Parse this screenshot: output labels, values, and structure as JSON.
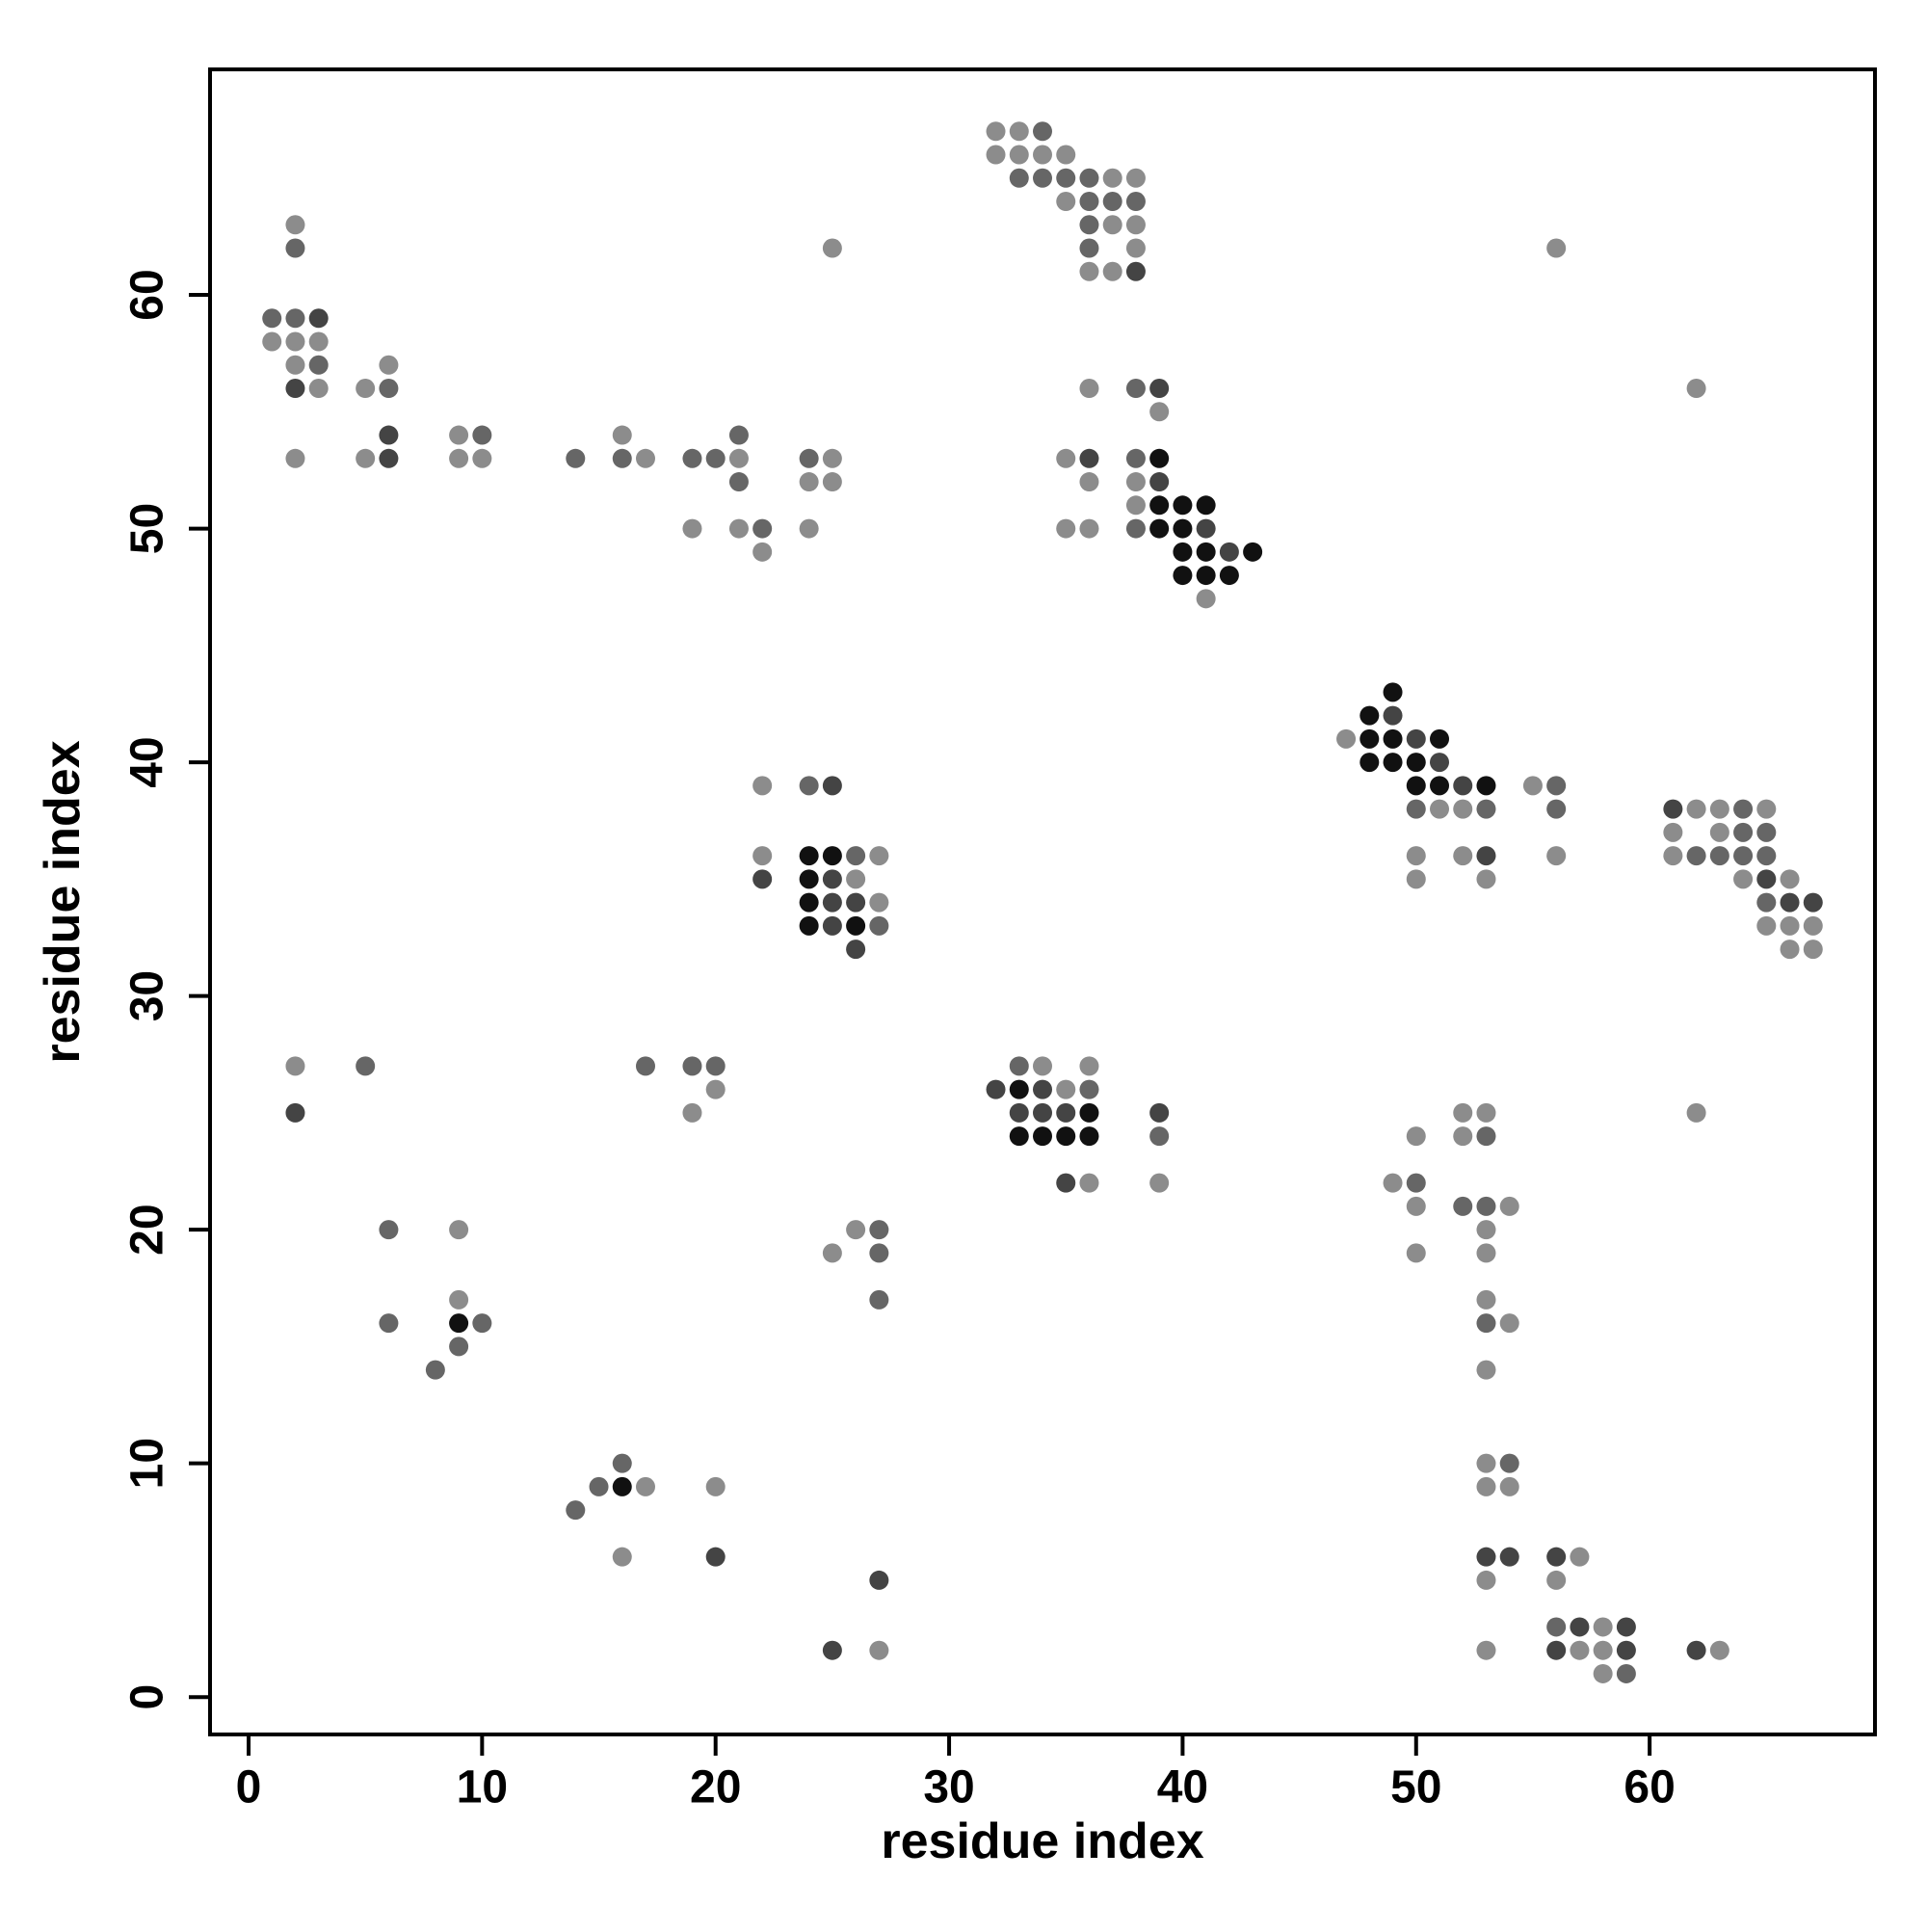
{
  "chart_data": {
    "type": "scatter",
    "xlabel": "residue index",
    "ylabel": "residue index",
    "xlim": [
      -1.65,
      69.65
    ],
    "ylim": [
      -1.6,
      69.65
    ],
    "xticks": [
      0,
      10,
      20,
      30,
      40,
      50,
      60
    ],
    "yticks": [
      0,
      10,
      20,
      30,
      40,
      50,
      60
    ],
    "grid": false,
    "x": [
      32,
      33,
      34,
      32,
      33,
      34,
      35,
      33,
      34,
      35,
      36,
      37,
      38,
      35,
      36,
      37,
      38,
      2,
      36,
      37,
      38,
      2,
      25,
      36,
      38,
      56,
      36,
      37,
      38,
      1,
      2,
      3,
      1,
      2,
      3,
      2,
      3,
      6,
      2,
      3,
      5,
      6,
      36,
      38,
      39,
      62,
      39,
      6,
      9,
      10,
      16,
      21,
      2,
      5,
      6,
      9,
      10,
      14,
      16,
      17,
      19,
      20,
      21,
      24,
      25,
      35,
      36,
      38,
      39,
      21,
      24,
      25,
      36,
      38,
      39,
      38,
      39,
      40,
      41,
      19,
      21,
      22,
      24,
      35,
      36,
      38,
      39,
      40,
      41,
      22,
      40,
      41,
      42,
      43,
      40,
      41,
      42,
      41,
      49,
      48,
      49,
      47,
      48,
      49,
      50,
      51,
      48,
      49,
      50,
      51,
      22,
      24,
      25,
      50,
      51,
      52,
      53,
      55,
      56,
      50,
      51,
      52,
      53,
      56,
      61,
      62,
      63,
      64,
      65,
      61,
      63,
      64,
      65,
      22,
      24,
      25,
      26,
      27,
      50,
      52,
      53,
      56,
      61,
      62,
      63,
      64,
      65,
      22,
      24,
      25,
      26,
      50,
      53,
      64,
      65,
      66,
      24,
      25,
      26,
      27,
      65,
      66,
      67,
      24,
      25,
      26,
      27,
      65,
      66,
      67,
      26,
      66,
      67,
      2,
      5,
      17,
      19,
      20,
      33,
      34,
      36,
      20,
      32,
      33,
      34,
      35,
      36,
      2,
      19,
      33,
      34,
      35,
      36,
      39,
      52,
      53,
      62,
      33,
      34,
      35,
      36,
      39,
      50,
      52,
      53,
      35,
      36,
      39,
      49,
      50,
      50,
      52,
      53,
      54,
      6,
      9,
      26,
      27,
      53,
      25,
      27,
      50,
      53,
      9,
      27,
      53,
      6,
      9,
      10,
      53,
      54,
      9,
      8,
      53,
      16,
      53,
      54,
      15,
      16,
      17,
      20,
      53,
      54,
      14,
      16,
      20,
      53,
      54,
      56,
      57,
      27,
      53,
      56,
      56,
      57,
      58,
      59,
      25,
      27,
      53,
      56,
      57,
      58,
      59,
      62,
      63,
      58,
      59
    ],
    "y": [
      67,
      67,
      67,
      66,
      66,
      66,
      66,
      65,
      65,
      65,
      65,
      65,
      65,
      64,
      64,
      64,
      64,
      63,
      63,
      63,
      63,
      62,
      62,
      62,
      62,
      62,
      61,
      61,
      61,
      59,
      59,
      59,
      58,
      58,
      58,
      57,
      57,
      57,
      56,
      56,
      56,
      56,
      56,
      56,
      56,
      56,
      55,
      54,
      54,
      54,
      54,
      54,
      53,
      53,
      53,
      53,
      53,
      53,
      53,
      53,
      53,
      53,
      53,
      53,
      53,
      53,
      53,
      53,
      53,
      52,
      52,
      52,
      52,
      52,
      52,
      51,
      51,
      51,
      51,
      50,
      50,
      50,
      50,
      50,
      50,
      50,
      50,
      50,
      50,
      49,
      49,
      49,
      49,
      49,
      48,
      48,
      48,
      47,
      43,
      42,
      42,
      41,
      41,
      41,
      41,
      41,
      40,
      40,
      40,
      40,
      39,
      39,
      39,
      39,
      39,
      39,
      39,
      39,
      39,
      38,
      38,
      38,
      38,
      38,
      38,
      38,
      38,
      38,
      38,
      37,
      37,
      37,
      37,
      36,
      36,
      36,
      36,
      36,
      36,
      36,
      36,
      36,
      36,
      36,
      36,
      36,
      36,
      35,
      35,
      35,
      35,
      35,
      35,
      35,
      35,
      35,
      34,
      34,
      34,
      34,
      34,
      34,
      34,
      33,
      33,
      33,
      33,
      33,
      33,
      33,
      32,
      32,
      32,
      27,
      27,
      27,
      27,
      27,
      27,
      27,
      27,
      26,
      26,
      26,
      26,
      26,
      26,
      25,
      25,
      25,
      25,
      25,
      25,
      25,
      25,
      25,
      25,
      24,
      24,
      24,
      24,
      24,
      24,
      24,
      24,
      22,
      22,
      22,
      22,
      22,
      21,
      21,
      21,
      21,
      20,
      20,
      20,
      20,
      20,
      19,
      19,
      19,
      19,
      17,
      17,
      17,
      16,
      16,
      16,
      16,
      16,
      15,
      14,
      14,
      10,
      10,
      10,
      9,
      9,
      9,
      9,
      9,
      9,
      8,
      6,
      6,
      6,
      6,
      6,
      6,
      5,
      5,
      5,
      3,
      3,
      3,
      3,
      2,
      2,
      2,
      2,
      2,
      2,
      2,
      2,
      2,
      1,
      1
    ],
    "colors": [
      "#8c8c8c",
      "#8c8c8c",
      "#666666",
      "#8c8c8c",
      "#8c8c8c",
      "#8c8c8c",
      "#8c8c8c",
      "#666666",
      "#666666",
      "#666666",
      "#666666",
      "#8c8c8c",
      "#8c8c8c",
      "#8c8c8c",
      "#666666",
      "#666666",
      "#666666",
      "#8c8c8c",
      "#666666",
      "#8c8c8c",
      "#8c8c8c",
      "#666666",
      "#8c8c8c",
      "#666666",
      "#8c8c8c",
      "#8c8c8c",
      "#8c8c8c",
      "#8c8c8c",
      "#444444",
      "#666666",
      "#666666",
      "#444444",
      "#8c8c8c",
      "#8c8c8c",
      "#8c8c8c",
      "#8c8c8c",
      "#666666",
      "#8c8c8c",
      "#444444",
      "#8c8c8c",
      "#8c8c8c",
      "#666666",
      "#8c8c8c",
      "#666666",
      "#444444",
      "#8c8c8c",
      "#8c8c8c",
      "#444444",
      "#8c8c8c",
      "#666666",
      "#8c8c8c",
      "#666666",
      "#8c8c8c",
      "#8c8c8c",
      "#444444",
      "#8c8c8c",
      "#8c8c8c",
      "#666666",
      "#666666",
      "#8c8c8c",
      "#666666",
      "#666666",
      "#8c8c8c",
      "#666666",
      "#8c8c8c",
      "#8c8c8c",
      "#444444",
      "#666666",
      "#111111",
      "#666666",
      "#8c8c8c",
      "#8c8c8c",
      "#8c8c8c",
      "#8c8c8c",
      "#444444",
      "#8c8c8c",
      "#111111",
      "#111111",
      "#111111",
      "#8c8c8c",
      "#8c8c8c",
      "#666666",
      "#8c8c8c",
      "#8c8c8c",
      "#8c8c8c",
      "#666666",
      "#111111",
      "#111111",
      "#444444",
      "#8c8c8c",
      "#111111",
      "#111111",
      "#444444",
      "#111111",
      "#111111",
      "#111111",
      "#111111",
      "#8c8c8c",
      "#111111",
      "#111111",
      "#444444",
      "#8c8c8c",
      "#111111",
      "#111111",
      "#444444",
      "#111111",
      "#111111",
      "#111111",
      "#111111",
      "#444444",
      "#8c8c8c",
      "#666666",
      "#444444",
      "#111111",
      "#111111",
      "#444444",
      "#111111",
      "#8c8c8c",
      "#666666",
      "#666666",
      "#8c8c8c",
      "#8c8c8c",
      "#666666",
      "#666666",
      "#444444",
      "#8c8c8c",
      "#8c8c8c",
      "#666666",
      "#8c8c8c",
      "#8c8c8c",
      "#8c8c8c",
      "#666666",
      "#666666",
      "#8c8c8c",
      "#111111",
      "#111111",
      "#666666",
      "#8c8c8c",
      "#8c8c8c",
      "#8c8c8c",
      "#444444",
      "#8c8c8c",
      "#8c8c8c",
      "#666666",
      "#666666",
      "#666666",
      "#666666",
      "#444444",
      "#111111",
      "#444444",
      "#8c8c8c",
      "#8c8c8c",
      "#8c8c8c",
      "#8c8c8c",
      "#444444",
      "#8c8c8c",
      "#111111",
      "#444444",
      "#444444",
      "#8c8c8c",
      "#666666",
      "#444444",
      "#444444",
      "#111111",
      "#444444",
      "#111111",
      "#666666",
      "#8c8c8c",
      "#8c8c8c",
      "#8c8c8c",
      "#444444",
      "#8c8c8c",
      "#8c8c8c",
      "#8c8c8c",
      "#666666",
      "#666666",
      "#666666",
      "#666666",
      "#666666",
      "#8c8c8c",
      "#8c8c8c",
      "#8c8c8c",
      "#444444",
      "#111111",
      "#444444",
      "#8c8c8c",
      "#666666",
      "#444444",
      "#8c8c8c",
      "#444444",
      "#444444",
      "#444444",
      "#111111",
      "#444444",
      "#8c8c8c",
      "#8c8c8c",
      "#8c8c8c",
      "#111111",
      "#111111",
      "#111111",
      "#111111",
      "#666666",
      "#8c8c8c",
      "#8c8c8c",
      "#666666",
      "#444444",
      "#8c8c8c",
      "#8c8c8c",
      "#8c8c8c",
      "#666666",
      "#8c8c8c",
      "#666666",
      "#666666",
      "#8c8c8c",
      "#666666",
      "#8c8c8c",
      "#8c8c8c",
      "#666666",
      "#8c8c8c",
      "#8c8c8c",
      "#666666",
      "#8c8c8c",
      "#8c8c8c",
      "#8c8c8c",
      "#666666",
      "#8c8c8c",
      "#666666",
      "#111111",
      "#666666",
      "#666666",
      "#8c8c8c",
      "#666666",
      "#666666",
      "#8c8c8c",
      "#666666",
      "#8c8c8c",
      "#666666",
      "#666666",
      "#111111",
      "#8c8c8c",
      "#8c8c8c",
      "#8c8c8c",
      "#8c8c8c",
      "#666666",
      "#8c8c8c",
      "#444444",
      "#444444",
      "#444444",
      "#444444",
      "#8c8c8c",
      "#444444",
      "#8c8c8c",
      "#8c8c8c",
      "#666666",
      "#444444",
      "#8c8c8c",
      "#444444",
      "#444444",
      "#8c8c8c",
      "#8c8c8c",
      "#444444",
      "#8c8c8c",
      "#8c8c8c",
      "#444444",
      "#444444",
      "#8c8c8c",
      "#8c8c8c",
      "#666666"
    ]
  }
}
